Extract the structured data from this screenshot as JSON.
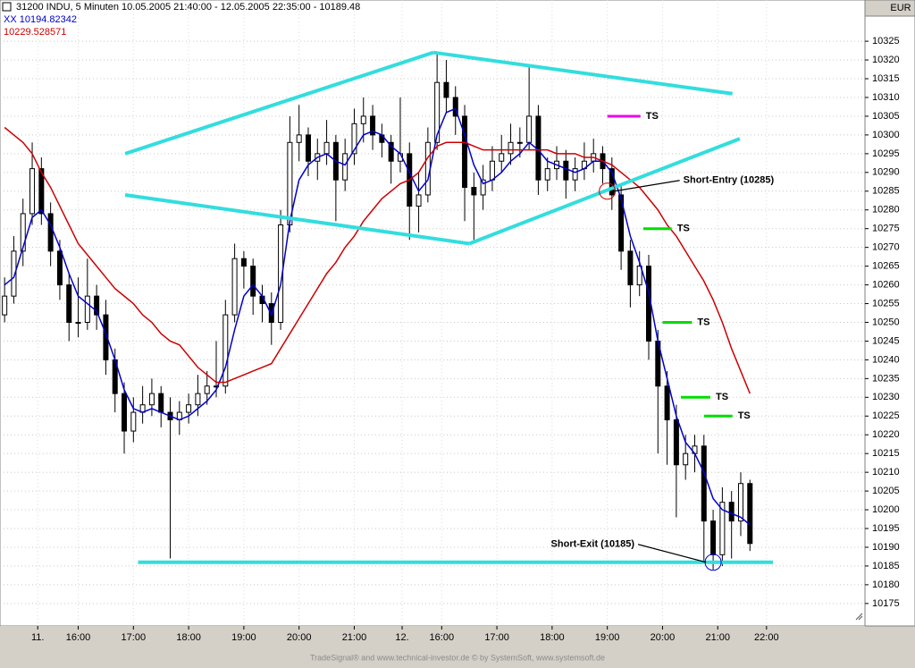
{
  "chart_data": {
    "type": "candlestick",
    "title": "31200  INDU, 5 Minuten  10.05.2005 21:40:00 - 12.05.2005 22:35:00 - 10189.48",
    "currency": "EUR",
    "footer": "TradeSignal® and www.technical-investor.de © by SystemSoft, www.systemsoft.de",
    "candle_color": "#000000",
    "candles": [
      [
        10252,
        10262,
        10250,
        10257
      ],
      [
        10257,
        10273,
        10255,
        10269
      ],
      [
        10269,
        10283,
        10265,
        10279
      ],
      [
        10279,
        10298,
        10276,
        10291
      ],
      [
        10291,
        10294,
        10276,
        10279
      ],
      [
        10279,
        10282,
        10265,
        10269
      ],
      [
        10269,
        10272,
        10256,
        10260
      ],
      [
        10260,
        10263,
        10245,
        10250
      ],
      [
        10250,
        10262,
        10246,
        10250
      ],
      [
        10250,
        10267,
        10248,
        10257
      ],
      [
        10257,
        10260,
        10248,
        10252
      ],
      [
        10252,
        10256,
        10236,
        10240
      ],
      [
        10240,
        10243,
        10226,
        10231
      ],
      [
        10231,
        10234,
        10215,
        10221
      ],
      [
        10221,
        10230,
        10218,
        10226
      ],
      [
        10226,
        10233,
        10223,
        10228
      ],
      [
        10228,
        10235,
        10225,
        10231
      ],
      [
        10231,
        10233,
        10222,
        10226
      ],
      [
        10226,
        10230,
        10187,
        10224
      ],
      [
        10224,
        10229,
        10220,
        10226
      ],
      [
        10226,
        10231,
        10223,
        10228
      ],
      [
        10228,
        10236,
        10225,
        10231
      ],
      [
        10231,
        10237,
        10228,
        10233
      ],
      [
        10233,
        10245,
        10230,
        10233
      ],
      [
        10233,
        10256,
        10231,
        10252
      ],
      [
        10252,
        10271,
        10250,
        10267
      ],
      [
        10267,
        10269,
        10259,
        10265
      ],
      [
        10265,
        10267,
        10252,
        10257
      ],
      [
        10257,
        10260,
        10250,
        10255
      ],
      [
        10255,
        10258,
        10244,
        10250
      ],
      [
        10250,
        10280,
        10248,
        10276
      ],
      [
        10276,
        10305,
        10274,
        10298
      ],
      [
        10298,
        10308,
        10293,
        10300
      ],
      [
        10300,
        10302,
        10289,
        10293
      ],
      [
        10293,
        10299,
        10288,
        10295
      ],
      [
        10295,
        10304,
        10292,
        10298
      ],
      [
        10298,
        10300,
        10277,
        10288
      ],
      [
        10288,
        10299,
        10285,
        10295
      ],
      [
        10295,
        10307,
        10292,
        10303
      ],
      [
        10303,
        10310,
        10298,
        10305
      ],
      [
        10305,
        10308,
        10296,
        10300
      ],
      [
        10300,
        10303,
        10294,
        10298
      ],
      [
        10298,
        10300,
        10287,
        10293
      ],
      [
        10293,
        10310,
        10290,
        10295
      ],
      [
        10295,
        10298,
        10272,
        10281
      ],
      [
        10281,
        10290,
        10274,
        10284
      ],
      [
        10284,
        10302,
        10282,
        10298
      ],
      [
        10298,
        10322,
        10296,
        10314
      ],
      [
        10314,
        10320,
        10306,
        10310
      ],
      [
        10310,
        10313,
        10300,
        10305
      ],
      [
        10305,
        10308,
        10277,
        10286
      ],
      [
        10286,
        10290,
        10272,
        10284
      ],
      [
        10284,
        10292,
        10280,
        10288
      ],
      [
        10288,
        10297,
        10285,
        10293
      ],
      [
        10293,
        10300,
        10290,
        10295
      ],
      [
        10295,
        10303,
        10292,
        10298
      ],
      [
        10298,
        10302,
        10294,
        10298
      ],
      [
        10298,
        10318,
        10296,
        10305
      ],
      [
        10305,
        10308,
        10284,
        10288
      ],
      [
        10288,
        10294,
        10285,
        10291
      ],
      [
        10291,
        10297,
        10288,
        10293
      ],
      [
        10293,
        10296,
        10283,
        10288
      ],
      [
        10288,
        10294,
        10285,
        10291
      ],
      [
        10291,
        10298,
        10288,
        10293
      ],
      [
        10293,
        10299,
        10290,
        10295
      ],
      [
        10295,
        10297,
        10287,
        10291
      ],
      [
        10291,
        10294,
        10280,
        10284
      ],
      [
        10284,
        10287,
        10264,
        10269
      ],
      [
        10269,
        10272,
        10254,
        10260
      ],
      [
        10260,
        10269,
        10257,
        10265
      ],
      [
        10265,
        10268,
        10240,
        10245
      ],
      [
        10245,
        10248,
        10215,
        10233
      ],
      [
        10233,
        10237,
        10212,
        10224
      ],
      [
        10224,
        10228,
        10198,
        10212
      ],
      [
        10212,
        10220,
        10208,
        10215
      ],
      [
        10215,
        10220,
        10210,
        10217
      ],
      [
        10217,
        10220,
        10186,
        10197
      ],
      [
        10197,
        10200,
        10184,
        10188
      ],
      [
        10188,
        10206,
        10185,
        10202
      ],
      [
        10202,
        10205,
        10187,
        10197
      ],
      [
        10197,
        10210,
        10193,
        10207
      ],
      [
        10207,
        10208,
        10189,
        10191
      ]
    ],
    "series": [
      {
        "name": "XX 10194.82342",
        "color": "#0000cc",
        "values": [
          10260,
          10262,
          10270,
          10278,
          10280,
          10276,
          10270,
          10263,
          10257,
          10255,
          10253,
          10247,
          10240,
          10232,
          10227,
          10226,
          10227,
          10226,
          10225,
          10224,
          10225,
          10227,
          10229,
          10232,
          10238,
          10248,
          10257,
          10260,
          10257,
          10252,
          10260,
          10277,
          10288,
          10292,
          10294,
          10295,
          10293,
          10292,
          10296,
          10300,
          10301,
          10300,
          10297,
          10295,
          10290,
          10285,
          10288,
          10300,
          10306,
          10307,
          10300,
          10292,
          10287,
          10288,
          10290,
          10293,
          10295,
          10298,
          10296,
          10293,
          10292,
          10291,
          10290,
          10291,
          10293,
          10293,
          10290,
          10283,
          10273,
          10266,
          10258,
          10245,
          10235,
          10225,
          10218,
          10215,
          10210,
          10203,
          10200,
          10199,
          10198,
          10196
        ]
      },
      {
        "name": "10229.528571",
        "color": "#cc0000",
        "values": [
          10302,
          10300,
          10298,
          10295,
          10290,
          10286,
          10281,
          10276,
          10271,
          10268,
          10265,
          10262,
          10259,
          10257,
          10255,
          10252,
          10250,
          10247,
          10245,
          10244,
          10241,
          10238,
          10236,
          10234,
          10234,
          10235,
          10236,
          10237,
          10238,
          10239,
          10243,
          10247,
          10251,
          10255,
          10259,
          10263,
          10266,
          10270,
          10273,
          10277,
          10280,
          10283,
          10285,
          10287,
          10288,
          10290,
          10294,
          10297,
          10298,
          10298,
          10298,
          10297,
          10296,
          10296,
          10296,
          10296,
          10296,
          10296,
          10296,
          10296,
          10295,
          10295,
          10295,
          10294,
          10294,
          10293,
          10292,
          10290,
          10288,
          10286,
          10283,
          10280,
          10276,
          10273,
          10269,
          10265,
          10261,
          10256,
          10250,
          10243,
          10237,
          10231
        ]
      }
    ],
    "trendline_color": "#33dddd",
    "trendlines": [
      {
        "x": [
          13.1,
          46.6
        ],
        "y": [
          10295,
          10322
        ]
      },
      {
        "x": [
          46.6,
          79.1
        ],
        "y": [
          10322,
          10311
        ]
      },
      {
        "x": [
          13.1,
          50.5
        ],
        "y": [
          10284,
          10271
        ]
      },
      {
        "x": [
          50.5,
          79.9
        ],
        "y": [
          10271,
          10299
        ]
      },
      {
        "x": [
          14.5,
          83.5
        ],
        "y": [
          10186,
          10186
        ]
      }
    ],
    "stops": [
      {
        "label": "TS",
        "y": 10305,
        "x": [
          65.5,
          69.1
        ],
        "color": "#ee00ee"
      },
      {
        "label": "TS",
        "y": 10275,
        "x": [
          69.4,
          72.5
        ],
        "color": "#00dd00"
      },
      {
        "label": "TS",
        "y": 10250,
        "x": [
          71.5,
          74.7
        ],
        "color": "#00dd00"
      },
      {
        "label": "TS",
        "y": 10230,
        "x": [
          73.5,
          76.7
        ],
        "color": "#00dd00"
      },
      {
        "label": "TS",
        "y": 10225,
        "x": [
          76,
          79.1
        ],
        "color": "#00dd00"
      }
    ],
    "annotations": [
      {
        "text": "Short-Entry (10285)",
        "x": 65.5,
        "y": 10285,
        "color": "#cc0000"
      },
      {
        "text": "Short-Exit (10185)",
        "x": 77,
        "y": 10186,
        "color": "#0000cc"
      }
    ],
    "xlim": [
      -0.5,
      93.5
    ],
    "xticks": [
      {
        "value": 3.6,
        "label": "11."
      },
      {
        "value": 8,
        "label": "16:00"
      },
      {
        "value": 14,
        "label": "17:00"
      },
      {
        "value": 20,
        "label": "18:00"
      },
      {
        "value": 26,
        "label": "19:00"
      },
      {
        "value": 32,
        "label": "20:00"
      },
      {
        "value": 38,
        "label": "21:00"
      },
      {
        "value": 43.2,
        "label": "12."
      },
      {
        "value": 47.5,
        "label": "16:00"
      },
      {
        "value": 53.5,
        "label": "17:00"
      },
      {
        "value": 59.5,
        "label": "18:00"
      },
      {
        "value": 65.5,
        "label": "19:00"
      },
      {
        "value": 71.5,
        "label": "20:00"
      },
      {
        "value": 77.5,
        "label": "21:00"
      },
      {
        "value": 82.8,
        "label": "22:00"
      }
    ],
    "ylim": [
      10169,
      10336
    ],
    "yticks": [
      10175,
      10180,
      10185,
      10190,
      10195,
      10200,
      10205,
      10210,
      10215,
      10220,
      10225,
      10230,
      10235,
      10240,
      10245,
      10250,
      10255,
      10260,
      10265,
      10270,
      10275,
      10280,
      10285,
      10290,
      10295,
      10300,
      10305,
      10310,
      10315,
      10320,
      10325
    ],
    "grid": true
  }
}
